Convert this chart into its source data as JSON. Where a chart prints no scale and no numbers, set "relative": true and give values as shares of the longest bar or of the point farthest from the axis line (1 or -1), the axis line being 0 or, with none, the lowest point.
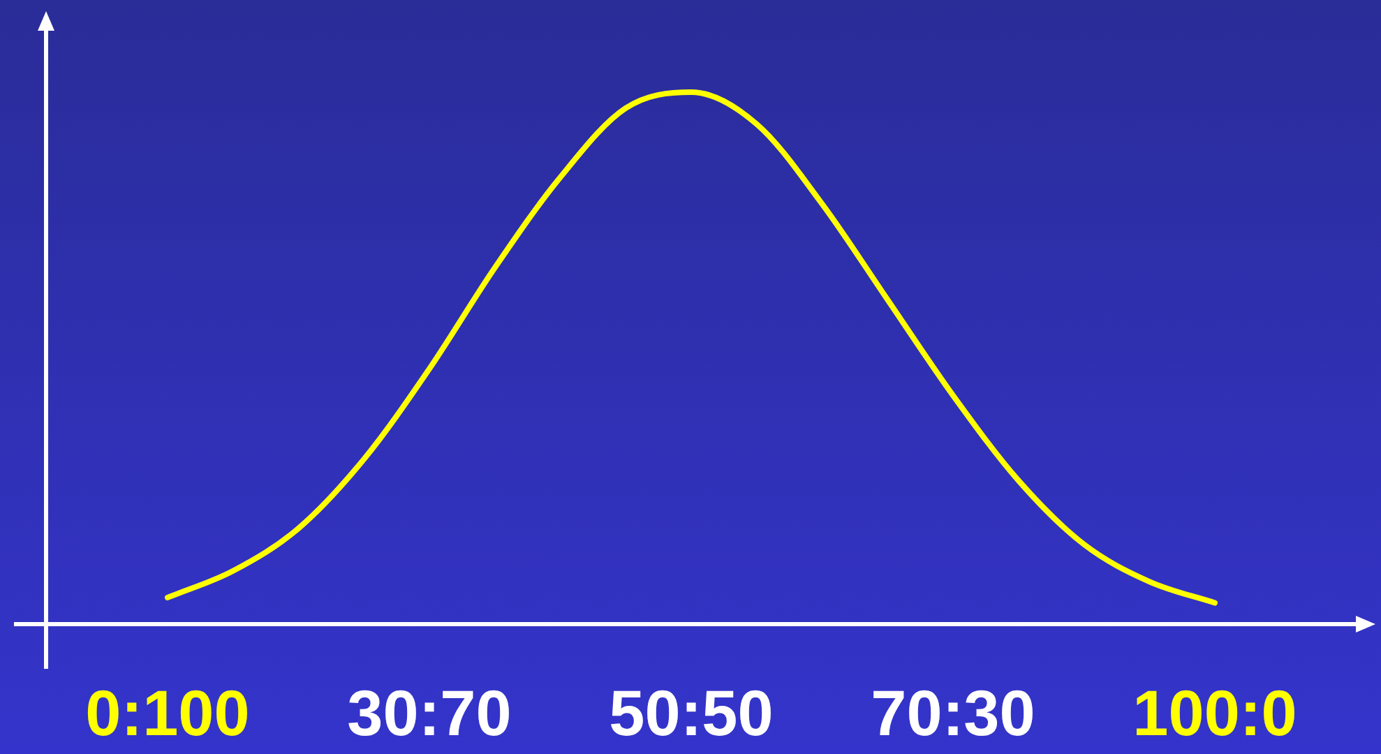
{
  "chart_data": {
    "type": "line",
    "relative": true,
    "tick_labels": "x",
    "marker": "none",
    "line_style": "solid",
    "categories": [
      "0:100",
      null,
      null,
      null,
      "30:70",
      null,
      null,
      null,
      "50:50",
      null,
      null,
      null,
      "70:30",
      null,
      null,
      null,
      "100:0"
    ],
    "series": [
      {
        "color": "#ffff00",
        "values": [
          0.05,
          0.1,
          0.18,
          0.31,
          0.48,
          0.67,
          0.84,
          0.97,
          1,
          0.94,
          0.79,
          0.61,
          0.43,
          0.27,
          0.15,
          0.08,
          0.04
        ]
      }
    ]
  }
}
